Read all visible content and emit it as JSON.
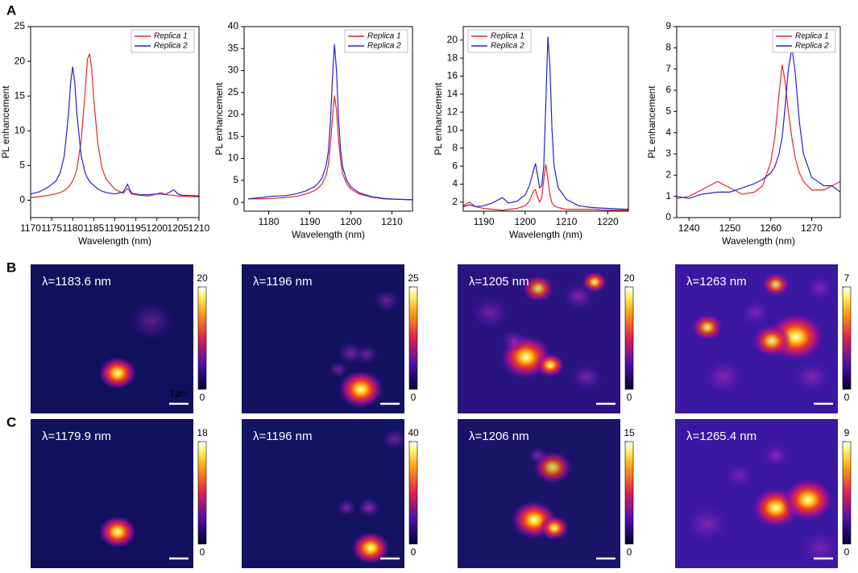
{
  "panel_labels": [
    "A",
    "B",
    "C"
  ],
  "chart_data": [
    {
      "type": "line",
      "x": [
        1170,
        1172,
        1174,
        1176,
        1177,
        1178,
        1179,
        1179.5,
        1180,
        1180.5,
        1181,
        1182,
        1183,
        1183.5,
        1184,
        1184.5,
        1185,
        1186,
        1187,
        1188,
        1190,
        1192,
        1193,
        1194,
        1196,
        1198,
        1200,
        1201,
        1202,
        1204,
        1205,
        1206,
        1208,
        1210
      ],
      "series": [
        {
          "name": "Replica 1",
          "color": "#e3262b",
          "values": [
            0.4,
            0.5,
            0.7,
            0.9,
            1.1,
            1.4,
            1.9,
            2.3,
            2.8,
            3.5,
            4.5,
            8.5,
            16,
            20.3,
            21.1,
            19,
            14.5,
            8,
            4.5,
            3,
            1.6,
            1.0,
            1.7,
            0.9,
            0.7,
            0.6,
            0.9,
            1.1,
            0.8,
            0.7,
            0.6,
            0.6,
            0.5,
            0.5
          ]
        },
        {
          "name": "Replica 2",
          "color": "#2222cc",
          "values": [
            0.9,
            1.2,
            1.82,
            2.74,
            3.88,
            6.4,
            12.4,
            16.9,
            19.2,
            16.9,
            12.4,
            6.4,
            3.88,
            3.2,
            2.74,
            2.4,
            2.15,
            1.6,
            1.3,
            1.1,
            0.9,
            1.2,
            2.3,
            1.0,
            0.8,
            0.8,
            0.9,
            0.9,
            0.8,
            1.5,
            0.9,
            0.7,
            0.7,
            0.6
          ]
        }
      ],
      "xlim": [
        1170,
        1210
      ],
      "xticks": [
        1170,
        1175,
        1180,
        1185,
        1190,
        1195,
        1200,
        1205,
        1210
      ],
      "ylim": [
        -2.5,
        25
      ],
      "yticks": [
        0,
        5,
        10,
        15,
        20,
        25
      ],
      "xlabel": "Wavelength (nm)",
      "ylabel": "PL enhancement",
      "legend": "upper right"
    },
    {
      "type": "line",
      "x": [
        1175,
        1178,
        1181,
        1184,
        1187,
        1189,
        1191,
        1192,
        1193,
        1194,
        1194.5,
        1195,
        1195.5,
        1196,
        1196.5,
        1197,
        1197.5,
        1198,
        1199,
        1200,
        1202,
        1205,
        1208,
        1211,
        1215
      ],
      "series": [
        {
          "name": "Replica 1",
          "color": "#e3262b",
          "values": [
            0.8,
            0.8,
            0.9,
            1.1,
            1.4,
            1.9,
            2.6,
            3.2,
            4.2,
            6.2,
            8.5,
            13,
            19,
            24.3,
            21,
            14,
            9.5,
            6.5,
            4.2,
            3,
            1.9,
            1.2,
            0.8,
            0.7,
            0.6
          ]
        },
        {
          "name": "Replica 2",
          "color": "#2222cc",
          "values": [
            0.8,
            1.1,
            1.4,
            1.5,
            2.0,
            2.6,
            3.5,
            4.3,
            5.6,
            8.5,
            11.5,
            18,
            28,
            36,
            30,
            19,
            12,
            8,
            5,
            3.5,
            2.2,
            1.3,
            0.9,
            0.7,
            0.6
          ]
        }
      ],
      "xlim": [
        1174,
        1215
      ],
      "xticks": [
        1180,
        1190,
        1200,
        1210
      ],
      "ylim": [
        -2,
        40
      ],
      "yticks": [
        0,
        5,
        10,
        15,
        20,
        25,
        30,
        35,
        40
      ],
      "xlabel": "Wavelength (nm)",
      "ylabel": "PL enhancement",
      "legend": "upper right"
    },
    {
      "type": "line",
      "x": [
        1185,
        1186.5,
        1188,
        1190,
        1192,
        1194.5,
        1196,
        1198,
        1200,
        1201,
        1202,
        1202.5,
        1203,
        1203.5,
        1204,
        1204.5,
        1205,
        1205.5,
        1206,
        1206.5,
        1207,
        1208,
        1210,
        1213,
        1216,
        1220,
        1225
      ],
      "series": [
        {
          "name": "Replica 1",
          "color": "#e3262b",
          "values": [
            1.6,
            2.0,
            1.5,
            1.3,
            1.2,
            1.1,
            1.2,
            1.3,
            1.6,
            2.1,
            3.2,
            3.4,
            2.6,
            2.0,
            2.5,
            4.5,
            6.2,
            4.5,
            2.8,
            1.9,
            1.6,
            1.4,
            1.2,
            1.2,
            1.2,
            1.1,
            1.1
          ]
        },
        {
          "name": "Replica 2",
          "color": "#2222cc",
          "values": [
            1.5,
            1.7,
            1.5,
            1.6,
            1.9,
            2.5,
            1.9,
            2.1,
            2.8,
            3.8,
            5.5,
            6.3,
            5,
            3.6,
            3.8,
            6,
            13,
            20.4,
            17,
            10,
            6,
            3.6,
            2.3,
            1.6,
            1.4,
            1.3,
            1.2
          ]
        }
      ],
      "xlim": [
        1185,
        1225
      ],
      "xticks": [
        1190,
        1200,
        1210,
        1220
      ],
      "ylim": [
        1,
        21.5
      ],
      "yticks": [
        2,
        4,
        6,
        8,
        10,
        12,
        14,
        16,
        18,
        20
      ],
      "xlabel": "Wavelength (nm)",
      "ylabel": "PL enhancement",
      "legend": "upper left"
    },
    {
      "type": "line",
      "x": [
        1237,
        1240,
        1243,
        1247,
        1250,
        1253,
        1256,
        1258,
        1260,
        1261,
        1262,
        1262.8,
        1263.5,
        1264.3,
        1265.2,
        1266,
        1267,
        1268,
        1270,
        1273,
        1275,
        1277
      ],
      "series": [
        {
          "name": "Replica 1",
          "color": "#e3262b",
          "values": [
            0.9,
            1.0,
            1.3,
            1.7,
            1.4,
            1.1,
            1.2,
            1.5,
            2.6,
            3.8,
            5.8,
            7.2,
            6.4,
            5,
            3.7,
            2.8,
            2.1,
            1.7,
            1.3,
            1.3,
            1.5,
            1.7
          ]
        },
        {
          "name": "Replica 2",
          "color": "#2222cc",
          "values": [
            1.0,
            0.9,
            1.1,
            1.2,
            1.2,
            1.4,
            1.6,
            1.8,
            2.1,
            2.4,
            3.0,
            3.8,
            5.2,
            7,
            8,
            6.8,
            4.5,
            3,
            1.9,
            1.5,
            1.5,
            1.2
          ]
        }
      ],
      "xlim": [
        1237,
        1277
      ],
      "xticks": [
        1240,
        1250,
        1260,
        1270
      ],
      "ylim": [
        0,
        9
      ],
      "yticks": [
        0,
        1,
        2,
        3,
        4,
        5,
        6,
        7,
        8,
        9
      ],
      "xlabel": "Wavelength (nm)",
      "ylabel": "PL enhancement",
      "legend": "upper right"
    }
  ],
  "maps": [
    {
      "label": "λ=1183.6 nm",
      "cticks": [
        0,
        20
      ],
      "scalebar": "1µm"
    },
    {
      "label": "λ=1196 nm",
      "cticks": [
        0,
        25
      ]
    },
    {
      "label": "λ=1205 nm",
      "cticks": [
        0,
        20
      ]
    },
    {
      "label": "λ=1263 nm",
      "cticks": [
        0,
        7
      ]
    },
    {
      "label": "λ=1179.9 nm",
      "cticks": [
        0,
        18
      ]
    },
    {
      "label": "λ=1196 nm",
      "cticks": [
        0,
        40
      ]
    },
    {
      "label": "λ=1206 nm",
      "cticks": [
        0,
        15
      ]
    },
    {
      "label": "λ=1265.4 nm",
      "cticks": [
        0,
        9
      ]
    }
  ]
}
